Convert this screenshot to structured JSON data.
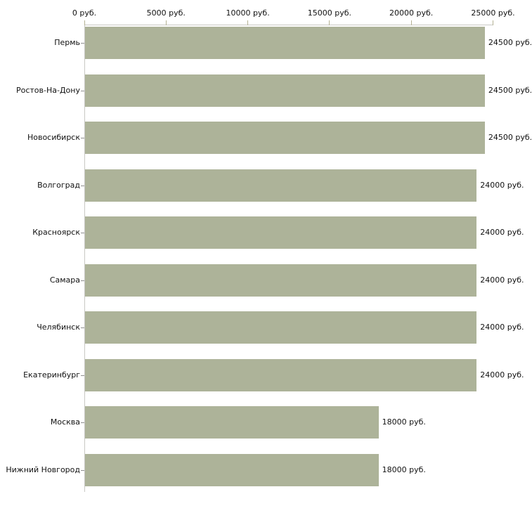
{
  "chart_data": {
    "type": "bar",
    "orientation": "horizontal",
    "title": "",
    "xlabel": "",
    "ylabel": "",
    "categories": [
      "Пермь",
      "Ростов-На-Дону",
      "Новосибирск",
      "Волгоград",
      "Красноярск",
      "Самара",
      "Челябинск",
      "Екатеринбург",
      "Москва",
      "Нижний Новгород"
    ],
    "values": [
      24500,
      24500,
      24500,
      24000,
      24000,
      24000,
      24000,
      24000,
      18000,
      18000
    ],
    "value_labels": [
      "24500 руб.",
      "24500 руб.",
      "24500 руб.",
      "24000 руб.",
      "24000 руб.",
      "24000 руб.",
      "24000 руб.",
      "24000 руб.",
      "18000 руб.",
      "18000 руб."
    ],
    "xlim": [
      0,
      25000
    ],
    "x_ticks": [
      0,
      5000,
      10000,
      15000,
      20000,
      25000
    ],
    "x_tick_labels": [
      "0 руб.",
      "5000 руб.",
      "10000 руб.",
      "15000 руб.",
      "20000 руб.",
      "25000 руб."
    ],
    "axis_position": "top",
    "grid": false,
    "legend": null,
    "bar_color": "#adb399",
    "axis_line_color": "#c8c8c4",
    "tick_color": "#b5b294",
    "text_color": "#111111"
  }
}
